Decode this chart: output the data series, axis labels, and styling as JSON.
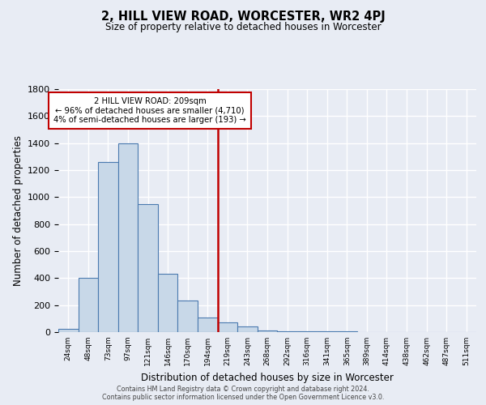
{
  "title": "2, HILL VIEW ROAD, WORCESTER, WR2 4PJ",
  "subtitle": "Size of property relative to detached houses in Worcester",
  "xlabel": "Distribution of detached houses by size in Worcester",
  "ylabel": "Number of detached properties",
  "bar_labels": [
    "24sqm",
    "48sqm",
    "73sqm",
    "97sqm",
    "121sqm",
    "146sqm",
    "170sqm",
    "194sqm",
    "219sqm",
    "243sqm",
    "268sqm",
    "292sqm",
    "316sqm",
    "341sqm",
    "365sqm",
    "389sqm",
    "414sqm",
    "438sqm",
    "462sqm",
    "487sqm",
    "511sqm"
  ],
  "bar_values": [
    25,
    400,
    1260,
    1400,
    950,
    430,
    235,
    110,
    70,
    45,
    10,
    5,
    5,
    5,
    5,
    3,
    2,
    1,
    1,
    1,
    1
  ],
  "bar_color": "#c8d8e8",
  "bar_edge_color": "#4a7aaf",
  "background_color": "#e8ecf4",
  "grid_color": "#ffffff",
  "vline_color": "#c00000",
  "annotation_title": "2 HILL VIEW ROAD: 209sqm",
  "annotation_line1": "← 96% of detached houses are smaller (4,710)",
  "annotation_line2": "4% of semi-detached houses are larger (193) →",
  "annotation_box_color": "#ffffff",
  "annotation_box_edge": "#c00000",
  "ylim": [
    0,
    1800
  ],
  "yticks": [
    0,
    200,
    400,
    600,
    800,
    1000,
    1200,
    1400,
    1600,
    1800
  ],
  "footer1": "Contains HM Land Registry data © Crown copyright and database right 2024.",
  "footer2": "Contains public sector information licensed under the Open Government Licence v3.0."
}
